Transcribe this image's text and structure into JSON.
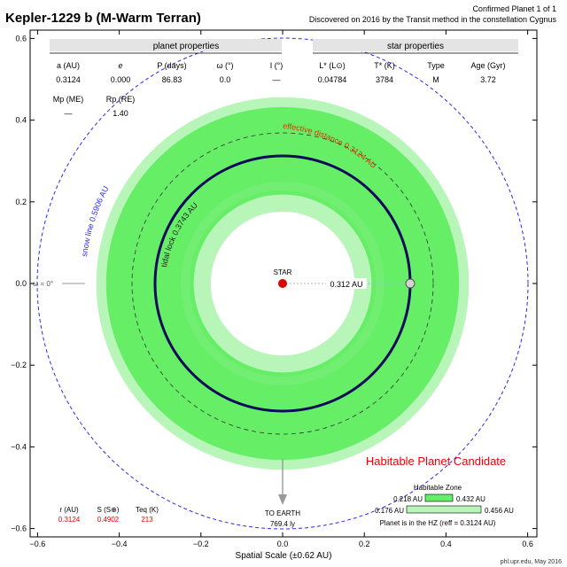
{
  "title": "Kepler-1229 b (M-Warm Terran)",
  "header_right": {
    "line1": "Confirmed Planet 1 of 1",
    "line2": "Discovered on 2016 by the Transit method in the constellation Cygnus"
  },
  "planet_properties": {
    "heading": "planet properties",
    "columns": [
      {
        "label": "a (AU)",
        "value": "0.3124"
      },
      {
        "label": "e",
        "value": "0.000"
      },
      {
        "label": "P (days)",
        "value": "86.83"
      },
      {
        "label": "ω (°)",
        "value": "0.0"
      },
      {
        "label": "I (°)",
        "value": "—"
      }
    ],
    "row2": [
      {
        "label": "Mp (ME)",
        "value": "—"
      },
      {
        "label": "Rp (RE)",
        "value": "1.40"
      }
    ]
  },
  "star_properties": {
    "heading": "star properties",
    "columns": [
      {
        "label": "L* (L⊙)",
        "value": "0.04784"
      },
      {
        "label": "T* (K)",
        "value": "3784"
      },
      {
        "label": "Type",
        "value": "M"
      },
      {
        "label": "Age (Gyr)",
        "value": "3.72"
      }
    ]
  },
  "diagram": {
    "axis": {
      "xlabel": "Spatial Scale (±0.62 AU)",
      "range": [
        -0.62,
        0.62
      ],
      "ticks": [
        -0.6,
        -0.4,
        -0.2,
        0.0,
        0.2,
        0.4,
        0.6
      ],
      "tick_labels": [
        "−0.6",
        "−0.4",
        "−0.2",
        "0.0",
        "0.2",
        "0.4",
        "0.6"
      ]
    },
    "star_label": "STAR",
    "orbit_au": 0.3124,
    "distance_label": "0.312 AU",
    "orbit_label": "effective distance 0.3124 AU",
    "tidal_lock_au": 0.3743,
    "tidal_lock_label": "tidal lock 0.3743 AU",
    "snow_line_au": 0.5906,
    "snow_line_label": "snow line 0.5906 AU",
    "omega_label": "ω = 0°",
    "hz_inner_au": 0.218,
    "hz_outer_au": 0.432,
    "hz_ext_inner_au": 0.176,
    "hz_ext_outer_au": 0.456,
    "earth_label": "TO EARTH",
    "earth_distance": "769.4 ly",
    "candidate_label": "Habitable Planet Candidate",
    "colors": {
      "hz": "#66ee66",
      "hz_ext": "#b8f5b8",
      "orbit": "#0b0b5a",
      "snow": "#2a2aee",
      "star": "#dd0000",
      "candidate": "#ee0000"
    }
  },
  "bottom_left": {
    "columns": [
      {
        "label": "r (AU)",
        "value": "0.3124"
      },
      {
        "label": "S (S⊕)",
        "value": "0.4902"
      },
      {
        "label": "Teq (K)",
        "value": "213"
      }
    ]
  },
  "hz_legend": {
    "title": "Habitable Zone",
    "inner_left": "0.218 AU",
    "inner_right": "0.432 AU",
    "outer_left": "0.176 AU",
    "outer_right": "0.456 AU",
    "status": "Planet is in the HZ (reff = 0.3124 AU)"
  },
  "credit": "phl.upr.edu, May 2016"
}
